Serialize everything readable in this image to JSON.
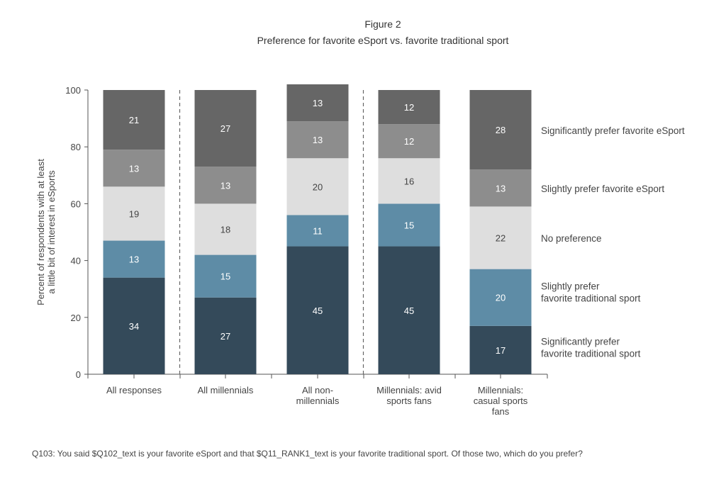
{
  "header": {
    "figure_label": "Figure 2",
    "title": "Preference for favorite eSport vs. favorite traditional sport"
  },
  "footnote": "Q103: You said $Q102_text is your favorite eSport and that $Q11_RANK1_text is your favorite traditional sport. Of those two, which do you prefer?",
  "chart_data": {
    "type": "bar",
    "stacked": true,
    "title": "Preference for favorite eSport vs. favorite traditional sport",
    "ylabel": [
      "Percent of respondents with at least",
      "a little bit of interest in eSports"
    ],
    "ylim": [
      0,
      100
    ],
    "yticks": [
      "0",
      "20",
      "40",
      "60",
      "80",
      "100"
    ],
    "grid": false,
    "legend_position": "right",
    "categories": [
      [
        "All responses"
      ],
      [
        "All millennials"
      ],
      [
        "All non-",
        "millennials"
      ],
      [
        "Millennials: avid",
        "sports fans"
      ],
      [
        "Millennials:",
        "casual sports",
        "fans"
      ]
    ],
    "separators_after": [
      0,
      2
    ],
    "series": [
      {
        "name": [
          "Significantly prefer",
          "favorite traditional sport"
        ],
        "color": "#344a5a",
        "values": [
          34,
          27,
          45,
          45,
          17
        ]
      },
      {
        "name": [
          "Slightly prefer",
          "favorite traditional sport"
        ],
        "color": "#5e8ca6",
        "values": [
          13,
          15,
          11,
          15,
          20
        ]
      },
      {
        "name": [
          "No preference"
        ],
        "color": "#dedede",
        "values": [
          19,
          18,
          20,
          16,
          22
        ]
      },
      {
        "name": [
          "Slightly prefer favorite eSport"
        ],
        "color": "#8d8d8d",
        "values": [
          13,
          13,
          13,
          12,
          13
        ]
      },
      {
        "name": [
          "Significantly prefer favorite eSport"
        ],
        "color": "#666666",
        "values": [
          21,
          27,
          13,
          12,
          28
        ]
      }
    ],
    "label_colors": [
      "#ffffff",
      "#ffffff",
      "#444444",
      "#ffffff",
      "#ffffff"
    ]
  }
}
